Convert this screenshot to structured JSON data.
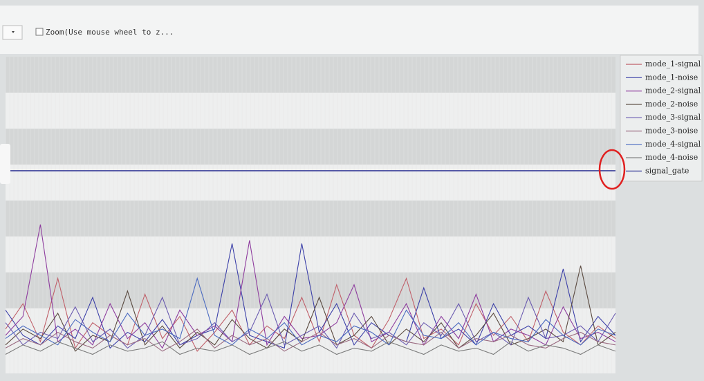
{
  "toolbar": {
    "zoom_label": "Zoom(Use mouse wheel to z..."
  },
  "chart_data": {
    "type": "line",
    "ylim": [
      0,
      100
    ],
    "legend": "right",
    "series": [
      {
        "name": "mode_1-signal",
        "color": "#c0606a",
        "values": [
          14,
          22,
          10,
          30,
          8,
          16,
          12,
          9,
          25,
          11,
          18,
          7,
          13,
          20,
          9,
          15,
          11,
          24,
          10,
          28,
          12,
          8,
          17,
          30,
          11,
          14,
          9,
          22,
          12,
          18,
          10,
          26,
          13,
          9,
          15,
          11
        ]
      },
      {
        "name": "mode_1-noise",
        "color": "#3b3fa8",
        "values": [
          20,
          12,
          9,
          15,
          11,
          24,
          8,
          13,
          10,
          17,
          9,
          12,
          14,
          41,
          12,
          10,
          8,
          41,
          13,
          22,
          9,
          16,
          12,
          10,
          27,
          11,
          14,
          9,
          22,
          12,
          15,
          11,
          33,
          10,
          18,
          12
        ]
      },
      {
        "name": "mode_2-signal",
        "color": "#8e3c9e",
        "values": [
          12,
          18,
          47,
          10,
          14,
          9,
          22,
          11,
          16,
          8,
          20,
          12,
          15,
          10,
          42,
          9,
          18,
          11,
          12,
          16,
          28,
          10,
          13,
          22,
          9,
          18,
          11,
          25,
          10,
          14,
          12,
          9,
          21,
          11,
          13,
          10
        ]
      },
      {
        "name": "mode_2-noise",
        "color": "#5a4a40",
        "values": [
          9,
          14,
          11,
          19,
          7,
          12,
          10,
          26,
          9,
          15,
          8,
          13,
          9,
          17,
          11,
          8,
          14,
          10,
          24,
          9,
          12,
          18,
          9,
          14,
          10,
          16,
          8,
          12,
          19,
          9,
          11,
          14,
          10,
          34,
          9,
          13
        ]
      },
      {
        "name": "mode_3-signal",
        "color": "#6a5ab0",
        "values": [
          16,
          9,
          13,
          11,
          21,
          10,
          14,
          8,
          12,
          24,
          9,
          11,
          16,
          10,
          13,
          25,
          9,
          12,
          15,
          8,
          19,
          11,
          13,
          9,
          16,
          12,
          22,
          10,
          13,
          9,
          24,
          11,
          12,
          15,
          10,
          19
        ]
      },
      {
        "name": "mode_3-noise",
        "color": "#9a6a80",
        "values": [
          8,
          11,
          9,
          13,
          10,
          8,
          12,
          9,
          11,
          7,
          10,
          14,
          8,
          12,
          9,
          11,
          7,
          10,
          13,
          9,
          11,
          8,
          12,
          10,
          9,
          13,
          8,
          11,
          10,
          12,
          9,
          8,
          11,
          13,
          10,
          9
        ]
      },
      {
        "name": "mode_4-signal",
        "color": "#4a6ac0",
        "values": [
          11,
          15,
          12,
          9,
          17,
          13,
          10,
          19,
          12,
          14,
          11,
          30,
          12,
          9,
          14,
          11,
          16,
          9,
          12,
          10,
          15,
          13,
          9,
          20,
          12,
          11,
          16,
          9,
          13,
          11,
          10,
          17,
          12,
          9,
          14,
          12
        ]
      },
      {
        "name": "mode_4-noise",
        "color": "#7a7a7a",
        "values": [
          6,
          9,
          7,
          10,
          8,
          6,
          9,
          7,
          8,
          10,
          6,
          8,
          7,
          9,
          6,
          8,
          10,
          7,
          9,
          6,
          8,
          7,
          10,
          8,
          6,
          9,
          7,
          8,
          6,
          10,
          7,
          9,
          8,
          6,
          9,
          7
        ]
      },
      {
        "name": "signal_gate",
        "color": "#3a3f9a",
        "values": [
          64,
          64,
          64,
          64,
          64,
          64,
          64,
          64,
          64,
          64,
          64,
          64,
          64,
          64,
          64,
          64,
          64,
          64,
          64,
          64,
          64,
          64,
          64,
          64,
          64,
          64,
          64,
          64,
          64,
          64,
          64,
          64,
          64,
          64,
          64,
          64
        ]
      }
    ]
  }
}
